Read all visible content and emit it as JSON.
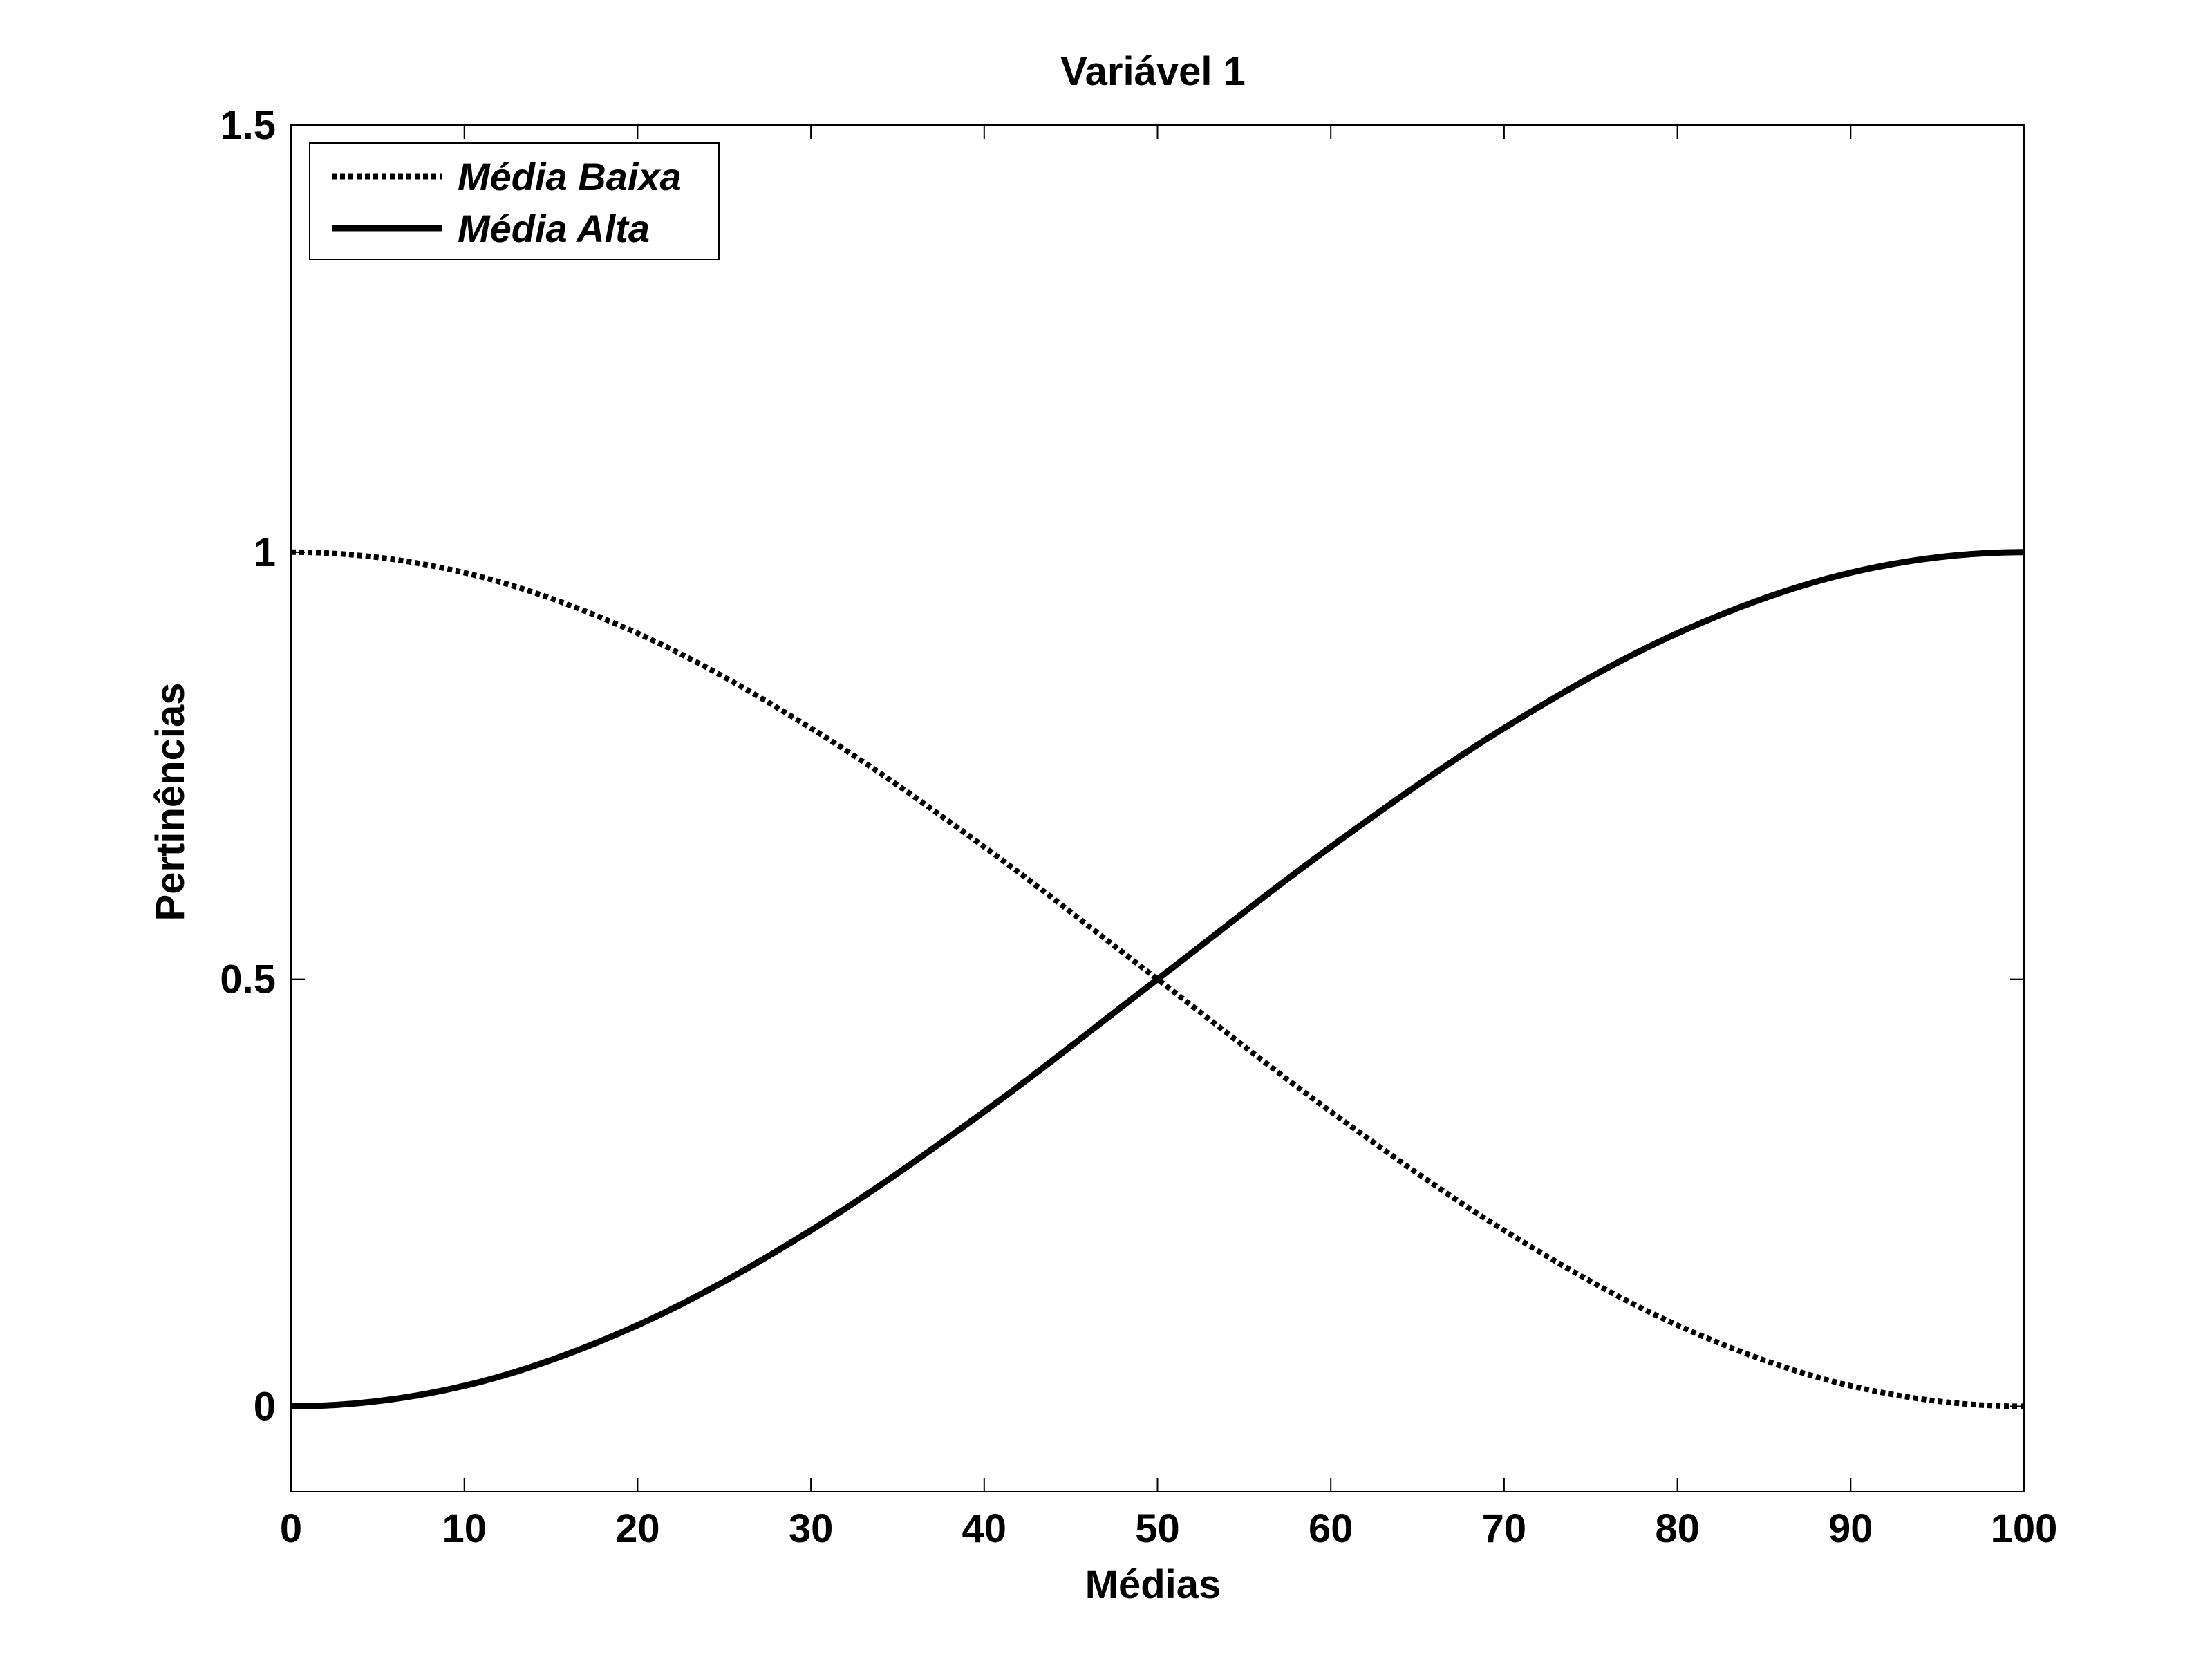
{
  "chart_data": {
    "type": "line",
    "title": "Variável 1",
    "xlabel": "Médias",
    "ylabel": "Pertinências",
    "xlim": [
      0,
      100
    ],
    "ylim": [
      -0.1,
      1.5
    ],
    "xticks": [
      0,
      10,
      20,
      30,
      40,
      50,
      60,
      70,
      80,
      90,
      100
    ],
    "xtick_labels": [
      "0",
      "10",
      "20",
      "30",
      "40",
      "50",
      "60",
      "70",
      "80",
      "90",
      "100"
    ],
    "yticks": [
      0,
      0.5,
      1,
      1.5
    ],
    "ytick_labels": [
      "0",
      "0.5",
      "1",
      "1.5"
    ],
    "grid": false,
    "legend_position": "top-left",
    "x": [
      0,
      10,
      20,
      30,
      40,
      50,
      60,
      70,
      80,
      90,
      100
    ],
    "series": [
      {
        "name": "Média Baixa",
        "style": "dotted",
        "color": "#000000",
        "values": [
          1.0,
          0.976,
          0.905,
          0.794,
          0.655,
          0.5,
          0.345,
          0.206,
          0.095,
          0.024,
          0.0
        ]
      },
      {
        "name": "Média Alta",
        "style": "solid",
        "color": "#000000",
        "values": [
          0.0,
          0.024,
          0.095,
          0.206,
          0.345,
          0.5,
          0.655,
          0.794,
          0.905,
          0.976,
          1.0
        ]
      }
    ]
  }
}
